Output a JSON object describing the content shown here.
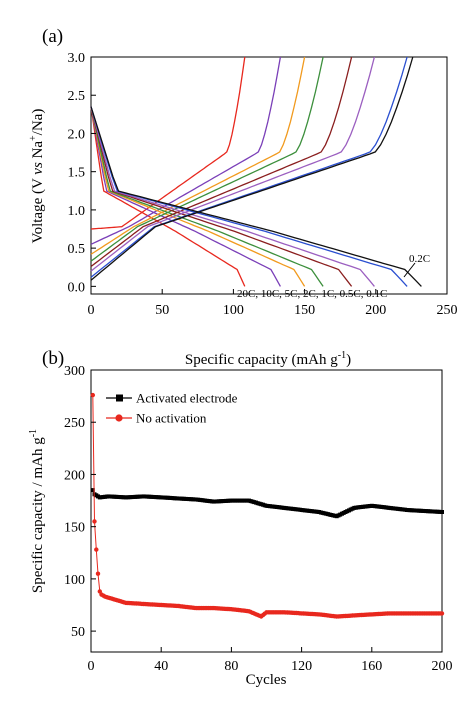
{
  "chart_data": [
    {
      "type": "line",
      "panel_label": "(a)",
      "xlabel": "Specific capacity  (mAh g",
      "xlabel_sup": "-1",
      "xlabel_close": ")",
      "ylabel_parts": [
        "Voltage (V ",
        "vs",
        " Na",
        "+",
        "/Na)"
      ],
      "xlim": [
        0,
        250
      ],
      "ylim": [
        -0.1,
        3.0
      ],
      "x_ticks": [
        "0",
        "50",
        "100",
        "150",
        "200",
        "250"
      ],
      "y_ticks": [
        "0.0",
        "0.5",
        "1.0",
        "1.5",
        "2.0",
        "2.5",
        "3.0"
      ],
      "rate_labels_text": "20C,  10C,  5C, 2C, 1C, 0.5C, 0.1C",
      "annotation": "0.2C",
      "series": [
        {
          "rate": "20C",
          "color": "#e8281e",
          "discharge_capacity": 108,
          "charge_capacity": 108,
          "charge_start_voltage": 0.75
        },
        {
          "rate": "10C",
          "color": "#7a3fb8",
          "discharge_capacity": 133,
          "charge_capacity": 133,
          "charge_start_voltage": 0.55
        },
        {
          "rate": "5C",
          "color": "#f19a1e",
          "discharge_capacity": 150,
          "charge_capacity": 150,
          "charge_start_voltage": 0.42
        },
        {
          "rate": "2C",
          "color": "#3c8f3c",
          "discharge_capacity": 163,
          "charge_capacity": 163,
          "charge_start_voltage": 0.33
        },
        {
          "rate": "1C",
          "color": "#8a1e1e",
          "discharge_capacity": 183,
          "charge_capacity": 183,
          "charge_start_voltage": 0.26
        },
        {
          "rate": "0.5C",
          "color": "#9b5fc0",
          "discharge_capacity": 199,
          "charge_capacity": 199,
          "charge_start_voltage": 0.2
        },
        {
          "rate": "0.2C",
          "color": "#2a4fd0",
          "discharge_capacity": 222,
          "charge_capacity": 222,
          "charge_start_voltage": 0.12
        },
        {
          "rate": "0.1C",
          "color": "#111111",
          "discharge_capacity": 232,
          "charge_capacity": 226,
          "charge_start_voltage": 0.08
        }
      ]
    },
    {
      "type": "scatter",
      "panel_label": "(b)",
      "xlabel": "Cycles",
      "ylabel": "Specific capacity / mAh g",
      "ylabel_sup": "-1",
      "xlim": [
        0,
        200
      ],
      "ylim": [
        30,
        300
      ],
      "x_ticks": [
        "0",
        "40",
        "80",
        "120",
        "160",
        "200"
      ],
      "y_ticks": [
        "50",
        "100",
        "150",
        "200",
        "250",
        "300"
      ],
      "legend_position": "top-left",
      "series": [
        {
          "name": "Activated electrode",
          "color": "#000000",
          "marker": "square",
          "points": [
            [
              1,
              185
            ],
            [
              2,
              181
            ],
            [
              5,
              178
            ],
            [
              10,
              179
            ],
            [
              20,
              178
            ],
            [
              30,
              179
            ],
            [
              40,
              178
            ],
            [
              50,
              177
            ],
            [
              60,
              176
            ],
            [
              70,
              174
            ],
            [
              80,
              175
            ],
            [
              90,
              175
            ],
            [
              100,
              170
            ],
            [
              110,
              168
            ],
            [
              120,
              166
            ],
            [
              130,
              164
            ],
            [
              140,
              160
            ],
            [
              150,
              168
            ],
            [
              160,
              170
            ],
            [
              170,
              168
            ],
            [
              180,
              166
            ],
            [
              190,
              165
            ],
            [
              200,
              164
            ]
          ]
        },
        {
          "name": "No activation",
          "color": "#e8281e",
          "marker": "circle",
          "points": [
            [
              1,
              276
            ],
            [
              2,
              155
            ],
            [
              3,
              128
            ],
            [
              4,
              105
            ],
            [
              5,
              88
            ],
            [
              6,
              85
            ],
            [
              8,
              83
            ],
            [
              10,
              82
            ],
            [
              20,
              77
            ],
            [
              30,
              76
            ],
            [
              40,
              75
            ],
            [
              50,
              74
            ],
            [
              60,
              72
            ],
            [
              70,
              72
            ],
            [
              80,
              71
            ],
            [
              90,
              69
            ],
            [
              97,
              64
            ],
            [
              100,
              68
            ],
            [
              110,
              68
            ],
            [
              120,
              67
            ],
            [
              130,
              66
            ],
            [
              140,
              64
            ],
            [
              150,
              65
            ],
            [
              160,
              66
            ],
            [
              170,
              67
            ],
            [
              180,
              67
            ],
            [
              190,
              67
            ],
            [
              200,
              67
            ]
          ]
        }
      ]
    }
  ]
}
